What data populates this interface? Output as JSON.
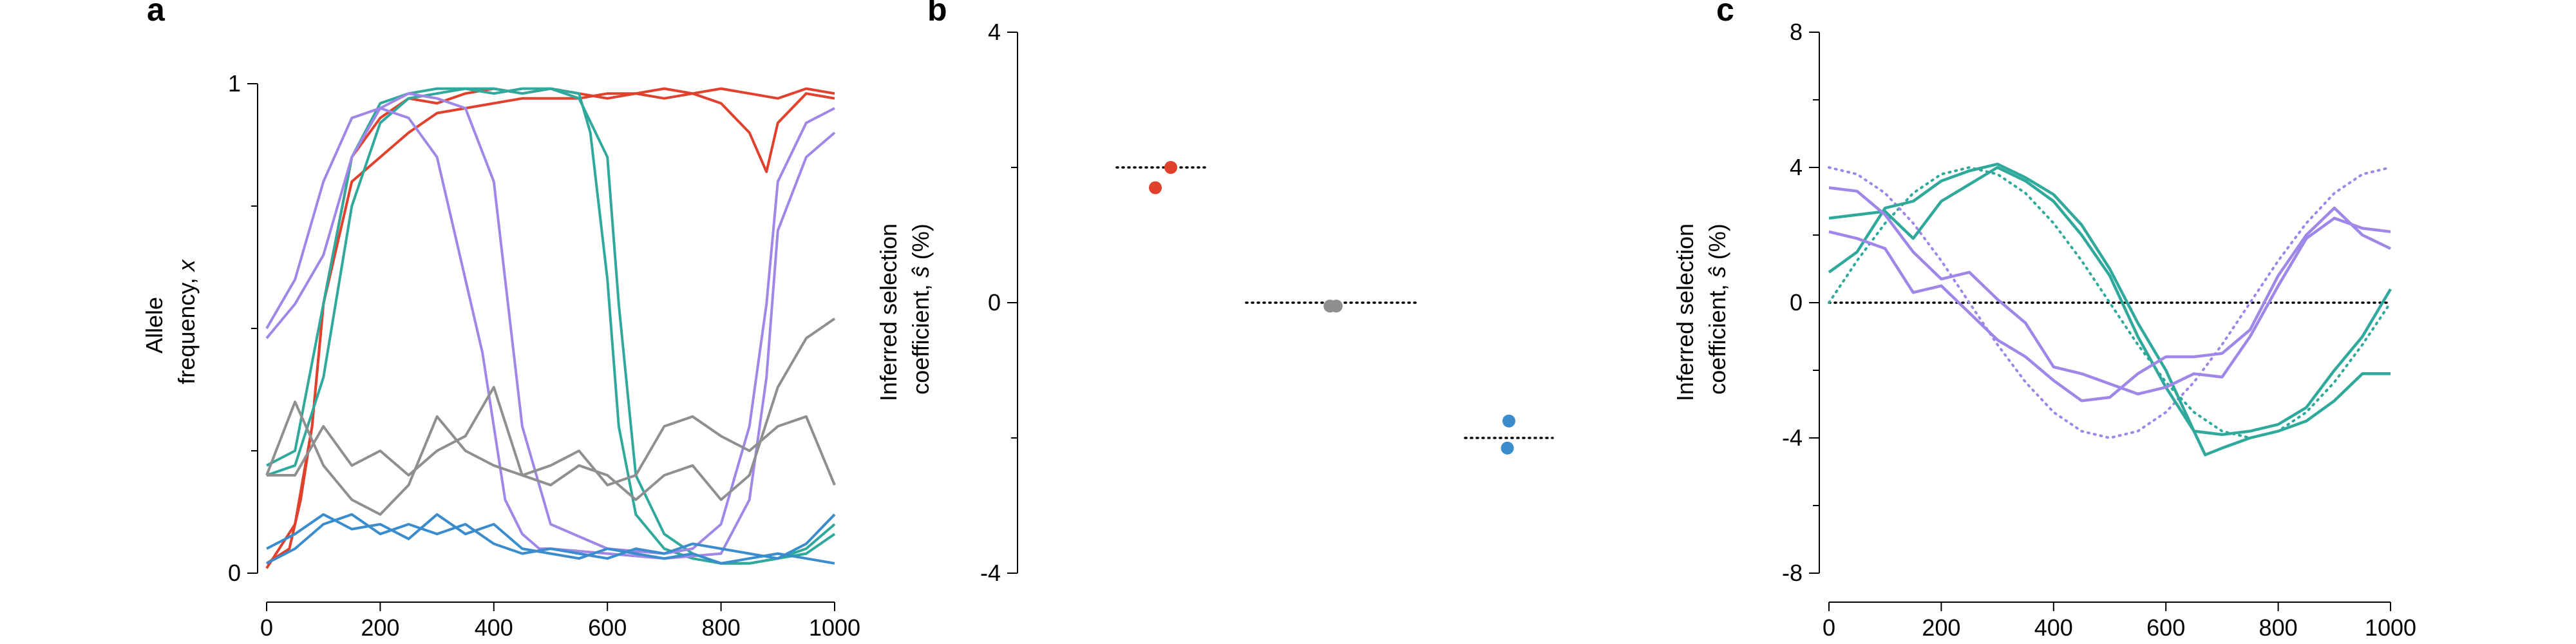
{
  "colors": {
    "red": "#e1412c",
    "teal": "#2fa99b",
    "purple": "#9f87e8",
    "gray": "#8f8f8f",
    "blue": "#3b8ccc"
  },
  "chart_data": [
    {
      "panel": "a",
      "type": "line",
      "xlabel": "",
      "ylabel_line1": "Allele",
      "ylabel_line2": "frequency, ",
      "ylabel_var": "x",
      "xlim": [
        0,
        1000
      ],
      "ylim": [
        0,
        1
      ],
      "xticks": [
        0,
        200,
        400,
        600,
        800,
        1000
      ],
      "yticks": [
        0,
        1
      ],
      "series": [
        {
          "color": "red",
          "x": [
            0,
            50,
            80,
            100,
            150,
            200,
            250,
            300,
            350,
            400,
            450,
            500,
            550,
            600,
            650,
            700,
            750,
            800,
            850,
            880,
            900,
            950,
            1000
          ],
          "y": [
            0.01,
            0.1,
            0.3,
            0.55,
            0.8,
            0.85,
            0.9,
            0.94,
            0.95,
            0.96,
            0.97,
            0.97,
            0.97,
            0.98,
            0.98,
            0.97,
            0.98,
            0.96,
            0.9,
            0.82,
            0.92,
            0.98,
            0.97
          ]
        },
        {
          "color": "red",
          "x": [
            0,
            40,
            60,
            80,
            100,
            150,
            200,
            250,
            300,
            350,
            400,
            450,
            500,
            550,
            600,
            650,
            700,
            750,
            800,
            850,
            900,
            950,
            1000
          ],
          "y": [
            0.02,
            0.05,
            0.15,
            0.3,
            0.55,
            0.85,
            0.93,
            0.97,
            0.96,
            0.98,
            0.99,
            0.98,
            0.99,
            0.98,
            0.97,
            0.98,
            0.99,
            0.98,
            0.99,
            0.98,
            0.97,
            0.99,
            0.98
          ]
        },
        {
          "color": "teal",
          "x": [
            0,
            50,
            100,
            150,
            200,
            250,
            300,
            350,
            400,
            450,
            500,
            550,
            570,
            600,
            620,
            650,
            700,
            750,
            800,
            850,
            900,
            950,
            1000
          ],
          "y": [
            0.22,
            0.25,
            0.55,
            0.85,
            0.96,
            0.98,
            0.99,
            0.99,
            0.98,
            0.99,
            0.99,
            0.98,
            0.9,
            0.6,
            0.3,
            0.12,
            0.05,
            0.03,
            0.02,
            0.02,
            0.03,
            0.05,
            0.1
          ]
        },
        {
          "color": "teal",
          "x": [
            0,
            50,
            100,
            150,
            200,
            250,
            300,
            350,
            400,
            450,
            500,
            550,
            600,
            620,
            650,
            700,
            750,
            800,
            850,
            900,
            950,
            1000
          ],
          "y": [
            0.2,
            0.22,
            0.4,
            0.75,
            0.92,
            0.97,
            0.98,
            0.99,
            0.99,
            0.98,
            0.99,
            0.97,
            0.85,
            0.55,
            0.2,
            0.08,
            0.04,
            0.02,
            0.02,
            0.03,
            0.04,
            0.08
          ]
        },
        {
          "color": "purple",
          "x": [
            0,
            50,
            100,
            150,
            200,
            250,
            300,
            330,
            350,
            380,
            400,
            420,
            450,
            480,
            500,
            600,
            700,
            800,
            850,
            880,
            900,
            950,
            1000
          ],
          "y": [
            0.5,
            0.6,
            0.8,
            0.93,
            0.95,
            0.93,
            0.85,
            0.7,
            0.6,
            0.45,
            0.3,
            0.15,
            0.08,
            0.05,
            0.05,
            0.04,
            0.03,
            0.04,
            0.15,
            0.4,
            0.7,
            0.85,
            0.9
          ]
        },
        {
          "color": "purple",
          "x": [
            0,
            50,
            100,
            150,
            200,
            250,
            300,
            350,
            400,
            420,
            450,
            500,
            600,
            700,
            750,
            800,
            850,
            880,
            900,
            950,
            1000
          ],
          "y": [
            0.48,
            0.55,
            0.65,
            0.85,
            0.95,
            0.98,
            0.97,
            0.95,
            0.8,
            0.6,
            0.3,
            0.1,
            0.05,
            0.04,
            0.05,
            0.1,
            0.3,
            0.55,
            0.8,
            0.92,
            0.95
          ]
        },
        {
          "color": "gray",
          "x": [
            0,
            50,
            100,
            150,
            200,
            250,
            300,
            350,
            400,
            450,
            500,
            550,
            600,
            650,
            700,
            750,
            800,
            850,
            900,
            950,
            1000
          ],
          "y": [
            0.2,
            0.35,
            0.22,
            0.15,
            0.12,
            0.18,
            0.32,
            0.25,
            0.22,
            0.2,
            0.18,
            0.22,
            0.2,
            0.15,
            0.2,
            0.22,
            0.15,
            0.2,
            0.38,
            0.48,
            0.52
          ]
        },
        {
          "color": "gray",
          "x": [
            0,
            50,
            100,
            150,
            200,
            250,
            300,
            350,
            400,
            450,
            500,
            550,
            600,
            650,
            700,
            750,
            800,
            850,
            900,
            950,
            1000
          ],
          "y": [
            0.2,
            0.2,
            0.3,
            0.22,
            0.25,
            0.2,
            0.25,
            0.28,
            0.38,
            0.2,
            0.22,
            0.25,
            0.18,
            0.2,
            0.3,
            0.32,
            0.28,
            0.25,
            0.3,
            0.32,
            0.18
          ]
        },
        {
          "color": "blue",
          "x": [
            0,
            50,
            100,
            150,
            200,
            250,
            300,
            350,
            400,
            450,
            500,
            550,
            600,
            650,
            700,
            750,
            800,
            850,
            900,
            950,
            1000
          ],
          "y": [
            0.02,
            0.05,
            0.1,
            0.12,
            0.08,
            0.1,
            0.08,
            0.1,
            0.06,
            0.04,
            0.05,
            0.04,
            0.03,
            0.05,
            0.04,
            0.06,
            0.05,
            0.04,
            0.03,
            0.06,
            0.12
          ]
        },
        {
          "color": "blue",
          "x": [
            0,
            50,
            100,
            150,
            200,
            250,
            300,
            350,
            400,
            450,
            500,
            550,
            600,
            650,
            700,
            750,
            800,
            850,
            900,
            950,
            1000
          ],
          "y": [
            0.05,
            0.08,
            0.12,
            0.09,
            0.1,
            0.07,
            0.12,
            0.08,
            0.1,
            0.05,
            0.04,
            0.03,
            0.05,
            0.04,
            0.03,
            0.04,
            0.02,
            0.03,
            0.04,
            0.03,
            0.02
          ]
        }
      ]
    },
    {
      "panel": "b",
      "type": "scatter",
      "ylabel_line1": "Inferred selection",
      "ylabel_line2": "coefficient, ",
      "ylabel_var": "ŝ",
      "ylabel_unit": " (%)",
      "ylim": [
        -4,
        4
      ],
      "yticks": [
        -4,
        0,
        4
      ],
      "groups": [
        {
          "color": "red",
          "true_value": 2.0,
          "points": [
            {
              "offset": -0.25,
              "y": 1.7
            },
            {
              "offset": 0.25,
              "y": 2.0
            }
          ]
        },
        {
          "color": "gray",
          "true_value": 0.0,
          "points": [
            {
              "offset": -0.1,
              "y": -0.05
            },
            {
              "offset": 0.1,
              "y": -0.05
            }
          ]
        },
        {
          "color": "blue",
          "true_value": -2.0,
          "points": [
            {
              "offset": 0.0,
              "y": -1.75
            },
            {
              "offset": -0.05,
              "y": -2.15
            }
          ]
        }
      ]
    },
    {
      "panel": "c",
      "type": "line",
      "ylabel_line1": "Inferred selection",
      "ylabel_line2": "coefficient, ",
      "ylabel_var": "ŝ",
      "ylabel_unit": " (%)",
      "xlim": [
        0,
        1000
      ],
      "ylim": [
        -8,
        8
      ],
      "xticks": [
        0,
        200,
        400,
        600,
        800,
        1000
      ],
      "yticks": [
        -8,
        -4,
        0,
        4,
        8
      ],
      "true_curves": [
        {
          "color": "teal",
          "x": [
            0,
            50,
            100,
            150,
            200,
            250,
            300,
            350,
            400,
            450,
            500,
            550,
            600,
            650,
            700,
            750,
            800,
            850,
            900,
            950,
            1000
          ],
          "y": [
            0,
            1.24,
            2.35,
            3.24,
            3.8,
            4.0,
            3.8,
            3.24,
            2.35,
            1.24,
            0,
            -1.24,
            -2.35,
            -3.24,
            -3.8,
            -4.0,
            -3.8,
            -3.24,
            -2.35,
            -1.24,
            0
          ]
        },
        {
          "color": "purple",
          "x": [
            0,
            50,
            100,
            150,
            200,
            250,
            300,
            350,
            400,
            450,
            500,
            550,
            600,
            650,
            700,
            750,
            800,
            850,
            900,
            950,
            1000
          ],
          "y": [
            4.0,
            3.8,
            3.24,
            2.35,
            1.24,
            0,
            -1.24,
            -2.35,
            -3.24,
            -3.8,
            -4.0,
            -3.8,
            -3.24,
            -2.35,
            -1.24,
            0,
            1.24,
            2.35,
            3.24,
            3.8,
            4.0
          ]
        }
      ],
      "series": [
        {
          "color": "teal",
          "x": [
            0,
            50,
            100,
            150,
            200,
            250,
            300,
            350,
            400,
            450,
            500,
            550,
            600,
            650,
            670,
            700,
            750,
            800,
            850,
            900,
            950,
            1000
          ],
          "y": [
            0.9,
            1.5,
            2.8,
            3.0,
            3.6,
            3.9,
            4.1,
            3.7,
            3.2,
            2.3,
            1.0,
            -0.6,
            -2.0,
            -3.8,
            -4.5,
            -4.3,
            -4.0,
            -3.8,
            -3.5,
            -2.9,
            -2.1,
            -2.1
          ]
        },
        {
          "color": "teal",
          "x": [
            0,
            50,
            100,
            150,
            200,
            250,
            300,
            350,
            400,
            450,
            500,
            550,
            600,
            650,
            700,
            750,
            800,
            850,
            900,
            950,
            1000
          ],
          "y": [
            2.5,
            2.6,
            2.7,
            1.9,
            3.0,
            3.5,
            4.0,
            3.6,
            3.0,
            2.0,
            0.8,
            -1.0,
            -2.5,
            -3.8,
            -3.9,
            -3.8,
            -3.6,
            -3.1,
            -2.0,
            -1.0,
            0.4
          ]
        },
        {
          "color": "purple",
          "x": [
            0,
            50,
            100,
            150,
            200,
            250,
            300,
            350,
            400,
            450,
            500,
            550,
            600,
            650,
            700,
            750,
            800,
            850,
            900,
            950,
            1000
          ],
          "y": [
            3.4,
            3.3,
            2.6,
            1.5,
            0.7,
            0.9,
            0.1,
            -0.6,
            -1.9,
            -2.1,
            -2.4,
            -2.7,
            -2.5,
            -2.1,
            -2.2,
            -1.0,
            0.5,
            1.9,
            2.5,
            2.2,
            2.1
          ]
        },
        {
          "color": "purple",
          "x": [
            0,
            50,
            100,
            150,
            200,
            250,
            300,
            350,
            400,
            450,
            500,
            550,
            600,
            650,
            700,
            750,
            800,
            850,
            900,
            950,
            1000
          ],
          "y": [
            2.1,
            1.9,
            1.6,
            0.3,
            0.5,
            -0.3,
            -1.1,
            -1.6,
            -2.3,
            -2.9,
            -2.8,
            -2.1,
            -1.6,
            -1.6,
            -1.5,
            -0.8,
            0.8,
            2.0,
            2.8,
            2.0,
            1.6
          ]
        }
      ]
    }
  ]
}
